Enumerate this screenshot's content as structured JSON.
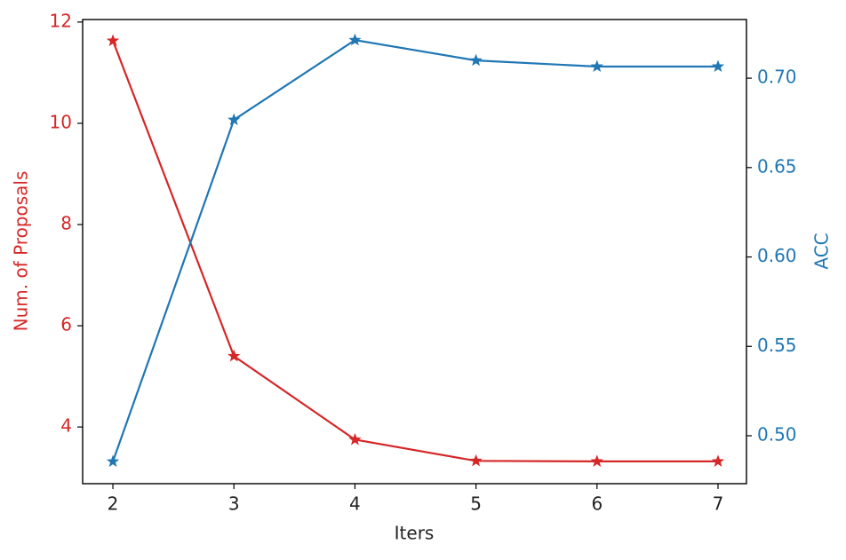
{
  "chart_data": {
    "type": "line",
    "xlabel": "Iters",
    "ylabel": "Num. of Proposals",
    "y2label": "ACC",
    "x": [
      2,
      3,
      4,
      5,
      6,
      7
    ],
    "series": [
      {
        "color": "#d62728",
        "values": [
          11.63,
          5.4,
          3.75,
          3.33,
          3.32,
          3.32
        ]
      },
      {
        "color": "#1f77b4",
        "axis": "y2",
        "values": [
          0.4856,
          0.6767,
          0.7213,
          0.7099,
          0.7065,
          0.7065
        ]
      }
    ],
    "xlim": [
      1.75,
      7.235
    ],
    "xticks": [
      2,
      3,
      4,
      5,
      6,
      7
    ],
    "ylim": [
      2.88,
      12.05
    ],
    "yticks": [
      4,
      6,
      8,
      10,
      12
    ],
    "y2lim": [
      0.4732,
      0.7328
    ],
    "y2ticks": [
      {
        "value": 0.5,
        "label": "0.50"
      },
      0.55,
      {
        "value": 0.6,
        "label": "0.60"
      },
      0.65,
      {
        "value": 0.7,
        "label": "0.70"
      }
    ],
    "marker": "star",
    "grid": false
  }
}
